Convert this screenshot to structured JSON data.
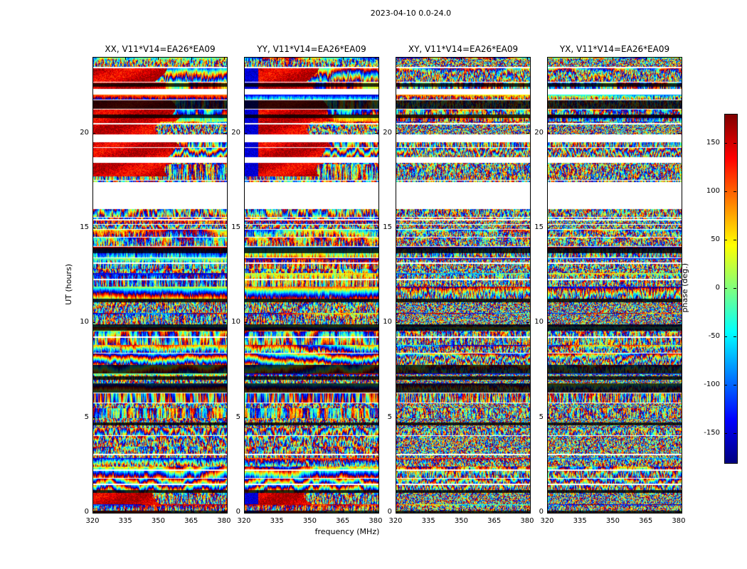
{
  "figure": {
    "suptitle": "2023-04-10 0.0-24.0",
    "xlabel": "frequency (MHz)",
    "ylabel": "UT (hours)",
    "colorbar_label": "phase (deg.)",
    "background": "#ffffff"
  },
  "chart_data": {
    "type": "heatmap",
    "title": "2023-04-10 0.0-24.0",
    "description": "Four dynamic-spectrum (waterfall) plots of interferometric visibility phase versus frequency and time for baseline V11*V14=EA26*EA09, one per polarization product, with a shared jet colorbar.",
    "panels": [
      {
        "label": "XX",
        "title": "XX, V11*V14=EA26*EA09",
        "style": "coherent",
        "warm_regions": [
          [
            17.75,
            23.45
          ],
          [
            0,
            1.35
          ]
        ],
        "cold_left_edge": false
      },
      {
        "label": "YY",
        "title": "YY, V11*V14=EA26*EA09",
        "style": "coherent",
        "warm_regions": [
          [
            17.75,
            23.45
          ],
          [
            0,
            1.35
          ]
        ],
        "cold_left_edge": true
      },
      {
        "label": "XY",
        "title": "XY, V11*V14=EA26*EA09",
        "style": "speckle",
        "warm_regions": [],
        "cold_left_edge": false
      },
      {
        "label": "YX",
        "title": "YX, V11*V14=EA26*EA09",
        "style": "speckle",
        "warm_regions": [],
        "cold_left_edge": false
      }
    ],
    "x": {
      "label": "frequency (MHz)",
      "min": 320,
      "max": 381,
      "ticks": [
        320,
        335,
        350,
        365,
        380
      ]
    },
    "y": {
      "label": "UT (hours)",
      "min": 0,
      "max": 24,
      "ticks": [
        0,
        5,
        10,
        15,
        20
      ]
    },
    "colorbar": {
      "label": "phase (deg.)",
      "min": -180,
      "max": 180,
      "ticks": [
        150,
        100,
        50,
        0,
        -50,
        -100,
        -150
      ],
      "colormap": "jet"
    },
    "gaps": [
      [
        16.0,
        17.45
      ],
      [
        18.45,
        18.75
      ],
      [
        19.55,
        19.95
      ],
      [
        22.05,
        22.35
      ]
    ],
    "thin_gaps": [
      23.5,
      20.55,
      15.5,
      13.2,
      12.35,
      9.3,
      3.1,
      2.3,
      1.55
    ],
    "dark_bands": [
      [
        22.45,
        22.65
      ],
      [
        20.8,
        21.0
      ],
      [
        13.7,
        14.0
      ],
      [
        11.1,
        11.3
      ],
      [
        9.6,
        9.95
      ],
      [
        7.0,
        7.2
      ],
      [
        4.6,
        4.75
      ],
      [
        1.05,
        1.2
      ]
    ],
    "seed": 42,
    "visual_features": [
      "XX and YY show coherent red/orange phase (~ +150 deg) below ~352 MHz between UT ~18 and ~23.5 and near UT 0-1.3",
      "YY shows a blue (~ -150 deg) strip at the lowest frequencies in the same upper interval",
      "White horizontal bands are data gaps common to all four panels",
      "XY and YX are fine-grained pseudo-random phase noise throughout",
      "Dark horizontal bands of low-amplitude scans cross all panels at common times"
    ]
  }
}
